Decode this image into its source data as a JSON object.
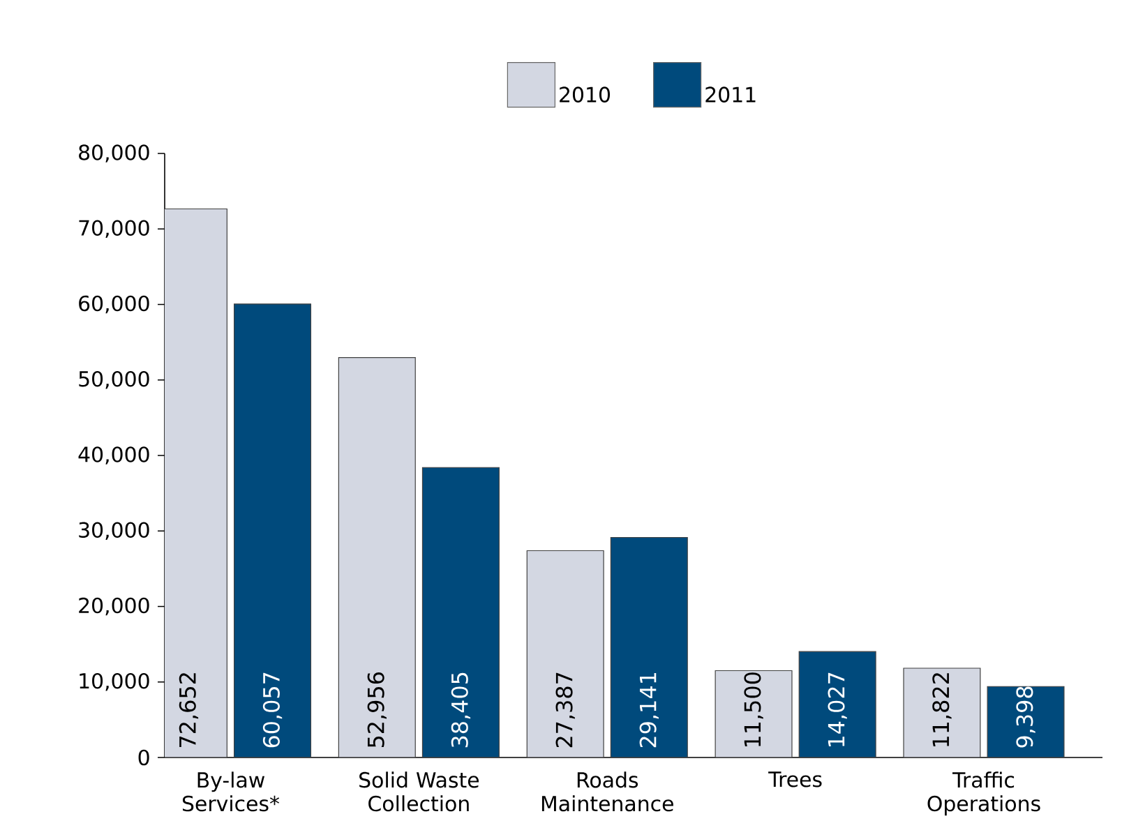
{
  "chart_data": {
    "type": "bar",
    "categories": [
      "By-law Services*",
      "Solid Waste Collection",
      "Roads Maintenance",
      "Trees",
      "Traffic Operations"
    ],
    "series": [
      {
        "name": "2010",
        "color": "#d3d7e2",
        "values": [
          72652,
          52956,
          27387,
          11500,
          11822
        ],
        "value_labels": [
          "72,652",
          "52,956",
          "27,387",
          "11,500",
          "11,822"
        ]
      },
      {
        "name": "2011",
        "color": "#004a7c",
        "values": [
          60057,
          38405,
          29141,
          14027,
          9398
        ],
        "value_labels": [
          "60,057",
          "38,405",
          "29,141",
          "14,027",
          "9,398"
        ]
      }
    ],
    "ylim": [
      0,
      80000
    ],
    "yticks": [
      {
        "value": 0,
        "label": "0"
      },
      {
        "value": 10000,
        "label": "10,000"
      },
      {
        "value": 20000,
        "label": "20,000"
      },
      {
        "value": 30000,
        "label": "30,000"
      },
      {
        "value": 40000,
        "label": "40,000"
      },
      {
        "value": 50000,
        "label": "50,000"
      },
      {
        "value": 60000,
        "label": "60,000"
      },
      {
        "value": 70000,
        "label": "70,000"
      },
      {
        "value": 80000,
        "label": "80,000"
      }
    ],
    "grid": false,
    "legend": "top"
  }
}
